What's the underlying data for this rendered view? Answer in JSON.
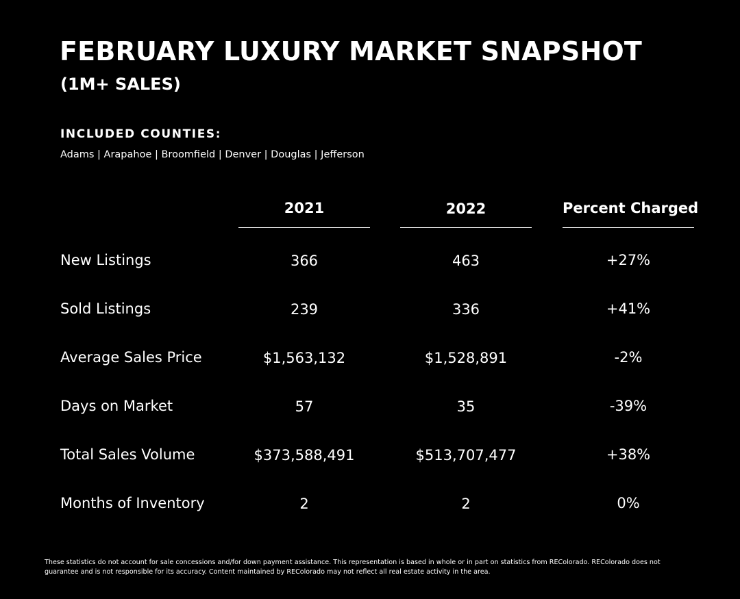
{
  "header": {
    "title": "FEBRUARY LUXURY MARKET SNAPSHOT",
    "subtitle": "(1M+ SALES)"
  },
  "counties": {
    "heading": "INCLUDED COUNTIES:",
    "list": "Adams | Arapahoe | Broomfield | Denver | Douglas | Jefferson"
  },
  "table": {
    "columns": [
      "2021",
      "2022",
      "Percent Charged"
    ],
    "rows": [
      {
        "label": "New Listings",
        "values": [
          "366",
          "463",
          "+27%"
        ]
      },
      {
        "label": "Sold Listings",
        "values": [
          "239",
          "336",
          "+41%"
        ]
      },
      {
        "label": "Average Sales Price",
        "values": [
          "$1,563,132",
          "$1,528,891",
          "-2%"
        ]
      },
      {
        "label": "Days on Market",
        "values": [
          "57",
          "35",
          "-39%"
        ]
      },
      {
        "label": "Total Sales Volume",
        "values": [
          "$373,588,491",
          "$513,707,477",
          "+38%"
        ]
      },
      {
        "label": "Months of Inventory",
        "values": [
          "2",
          "2",
          "0%"
        ]
      }
    ]
  },
  "footer": {
    "disclaimer": "These statistics do not account for sale concessions and/for down payment assistance. This representation is based in whole or in part on statistics from REColorado. REColorado does not guarantee and is not responsible for its accuracy. Content maintained by REColorado may not reflect all real estate activity in the area."
  },
  "colors": {
    "background": "#000000",
    "text": "#ffffff"
  }
}
